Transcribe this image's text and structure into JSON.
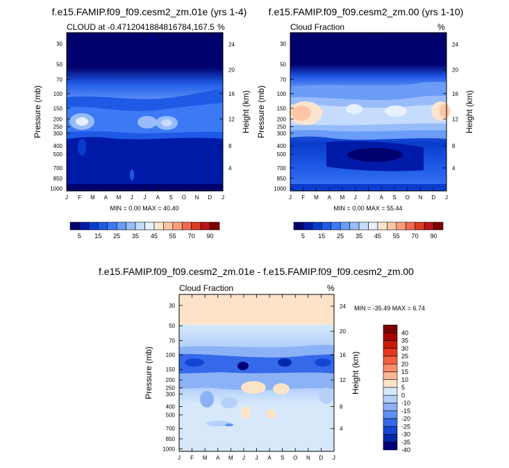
{
  "chart_data": [
    {
      "type": "heatmap",
      "title": "f.e15.FAMIP.f09_f09.cesm2_zm.01e (yrs 1-4)",
      "left_label": "CLOUD at -0.4712041884816784,167.5",
      "right_label": "%",
      "ylabel": "Pressure (mb)",
      "y2label": "Height (km)",
      "minmax": "MIN =   0.00 MAX =  40.40",
      "colorbar_ticks": [
        "5",
        "15",
        "25",
        "35",
        "45",
        "55",
        "70",
        "90"
      ],
      "min": 0.0,
      "max": 40.4
    },
    {
      "type": "heatmap",
      "title": "f.e15.FAMIP.f09_f09.cesm2_zm.00 (yrs 1-10)",
      "left_label": "Cloud Fraction",
      "right_label": "%",
      "ylabel": "Pressure (mb)",
      "y2label": "Height (km)",
      "minmax": "MIN =   0.00 MAX =  55.44",
      "colorbar_ticks": [
        "5",
        "15",
        "25",
        "35",
        "45",
        "55",
        "70",
        "90"
      ],
      "min": 0.0,
      "max": 55.44
    },
    {
      "type": "heatmap",
      "title": "f.e15.FAMIP.f09_f09.cesm2_zm.01e - f.e15.FAMIP.f09_f09.cesm2_zm.00",
      "left_label": "Cloud Fraction",
      "right_label": "%",
      "ylabel": "Pressure (mb)",
      "y2label": "Height (km)",
      "minmax": "MIN = -35.49 MAX =   6.74",
      "colorbar_ticks": [
        "40",
        "35",
        "30",
        "25",
        "20",
        "15",
        "10",
        "5",
        "0",
        "-10",
        "-15",
        "-20",
        "-25",
        "-30",
        "-35",
        "-40"
      ],
      "min": -35.49,
      "max": 6.74
    }
  ],
  "axes": {
    "months": [
      "J",
      "F",
      "M",
      "A",
      "M",
      "J",
      "J",
      "A",
      "S",
      "O",
      "N",
      "D",
      "J"
    ],
    "pressure_ticks": [
      "30",
      "50",
      "70",
      "100",
      "150",
      "200",
      "250",
      "300",
      "400",
      "500",
      "700",
      "850",
      "1000"
    ],
    "height_ticks": [
      "24",
      "20",
      "16",
      "12",
      "8",
      "4"
    ]
  },
  "colors": {
    "seq": [
      "#00006e",
      "#001aa8",
      "#0a3ccc",
      "#1f5ae6",
      "#3c7af5",
      "#6a9cf8",
      "#98bcfa",
      "#c6dcfc",
      "#e7f0fd",
      "#fce5cf",
      "#fcc6a6",
      "#fa9d7d",
      "#f26a4d",
      "#de3b24",
      "#b81414",
      "#7d0000"
    ],
    "diff": [
      "#7d0000",
      "#a80000",
      "#cc1a0a",
      "#e6381f",
      "#f5603c",
      "#f98c6a",
      "#fbb898",
      "#fde4c9",
      "#d7e8fb",
      "#b4d0f9",
      "#8cb2f6",
      "#5e8ff2",
      "#3569e9",
      "#1446d4",
      "#0028a6",
      "#00007a"
    ]
  }
}
